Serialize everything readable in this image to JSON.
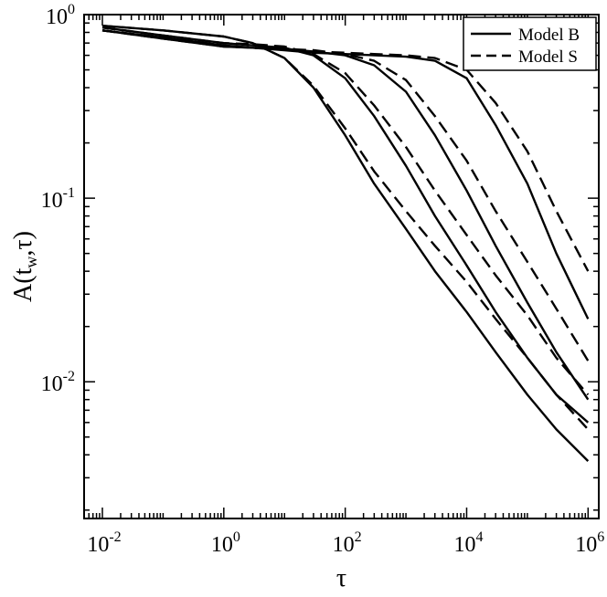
{
  "chart_data": {
    "type": "line",
    "title": "",
    "xlabel": "τ",
    "ylabel": {
      "main": "A(t",
      "sub": "w",
      "rest": ",τ)"
    },
    "x_scale": "log",
    "y_scale": "log",
    "xlim": [
      0.005,
      1500000
    ],
    "ylim": [
      0.0018,
      1.0
    ],
    "x_ticks": [
      {
        "value": 0.01,
        "base": "10",
        "exp": "-2"
      },
      {
        "value": 1,
        "base": "10",
        "exp": "0"
      },
      {
        "value": 100,
        "base": "10",
        "exp": "2"
      },
      {
        "value": 10000,
        "base": "10",
        "exp": "4"
      },
      {
        "value": 1000000,
        "base": "10",
        "exp": "6"
      }
    ],
    "y_ticks": [
      {
        "value": 1,
        "base": "10",
        "exp": "0"
      },
      {
        "value": 0.1,
        "base": "10",
        "exp": "-1"
      },
      {
        "value": 0.01,
        "base": "10",
        "exp": "-2"
      }
    ],
    "legend": {
      "position": "top-right",
      "entries": [
        {
          "name": "Model B",
          "style": "solid"
        },
        {
          "name": "Model S",
          "style": "dashed"
        }
      ]
    },
    "grid": false,
    "series": [
      {
        "style": "solid",
        "x": [
          0.01,
          0.1,
          1,
          3,
          10,
          30,
          100,
          300,
          1000,
          3000,
          10000,
          30000,
          100000,
          300000,
          1000000
        ],
        "y": [
          0.87,
          0.82,
          0.76,
          0.7,
          0.58,
          0.4,
          0.22,
          0.12,
          0.068,
          0.04,
          0.024,
          0.0145,
          0.0085,
          0.0055,
          0.0037
        ]
      },
      {
        "style": "dashed",
        "x": [
          0.01,
          0.1,
          1,
          3,
          10,
          30,
          100,
          300,
          1000,
          3000,
          10000,
          30000,
          100000,
          300000,
          1000000
        ],
        "y": [
          0.87,
          0.82,
          0.76,
          0.7,
          0.58,
          0.41,
          0.24,
          0.14,
          0.085,
          0.055,
          0.035,
          0.022,
          0.0135,
          0.0085,
          0.0055
        ]
      },
      {
        "style": "solid",
        "x": [
          0.01,
          0.1,
          1,
          3,
          10,
          30,
          100,
          300,
          1000,
          3000,
          10000,
          30000,
          100000,
          300000,
          1000000
        ],
        "y": [
          0.85,
          0.77,
          0.7,
          0.68,
          0.66,
          0.6,
          0.45,
          0.28,
          0.15,
          0.08,
          0.043,
          0.024,
          0.0135,
          0.0085,
          0.006
        ]
      },
      {
        "style": "dashed",
        "x": [
          0.01,
          0.1,
          1,
          3,
          10,
          30,
          100,
          300,
          1000,
          3000,
          10000,
          30000,
          100000,
          300000,
          1000000
        ],
        "y": [
          0.85,
          0.77,
          0.7,
          0.69,
          0.67,
          0.61,
          0.48,
          0.32,
          0.19,
          0.11,
          0.063,
          0.038,
          0.023,
          0.0135,
          0.0085
        ]
      },
      {
        "style": "solid",
        "x": [
          0.01,
          0.1,
          1,
          3,
          10,
          30,
          100,
          300,
          1000,
          3000,
          10000,
          30000,
          100000,
          300000,
          1000000
        ],
        "y": [
          0.82,
          0.75,
          0.68,
          0.66,
          0.65,
          0.63,
          0.6,
          0.53,
          0.38,
          0.22,
          0.11,
          0.055,
          0.027,
          0.0145,
          0.008
        ]
      },
      {
        "style": "dashed",
        "x": [
          0.01,
          0.1,
          1,
          3,
          10,
          30,
          100,
          300,
          1000,
          3000,
          10000,
          30000,
          100000,
          300000,
          1000000
        ],
        "y": [
          0.82,
          0.75,
          0.68,
          0.66,
          0.65,
          0.64,
          0.61,
          0.56,
          0.44,
          0.28,
          0.16,
          0.085,
          0.045,
          0.025,
          0.013
        ]
      },
      {
        "style": "solid",
        "x": [
          0.01,
          0.1,
          1,
          3,
          10,
          30,
          100,
          300,
          1000,
          3000,
          10000,
          30000,
          100000,
          300000,
          1000000
        ],
        "y": [
          0.82,
          0.74,
          0.67,
          0.66,
          0.64,
          0.62,
          0.61,
          0.6,
          0.59,
          0.56,
          0.45,
          0.25,
          0.12,
          0.05,
          0.022
        ]
      },
      {
        "style": "dashed",
        "x": [
          0.01,
          0.1,
          1,
          3,
          10,
          30,
          100,
          300,
          1000,
          3000,
          10000,
          30000,
          100000,
          300000,
          1000000
        ],
        "y": [
          0.82,
          0.74,
          0.67,
          0.66,
          0.65,
          0.63,
          0.62,
          0.61,
          0.6,
          0.58,
          0.5,
          0.33,
          0.18,
          0.085,
          0.04
        ]
      }
    ]
  }
}
